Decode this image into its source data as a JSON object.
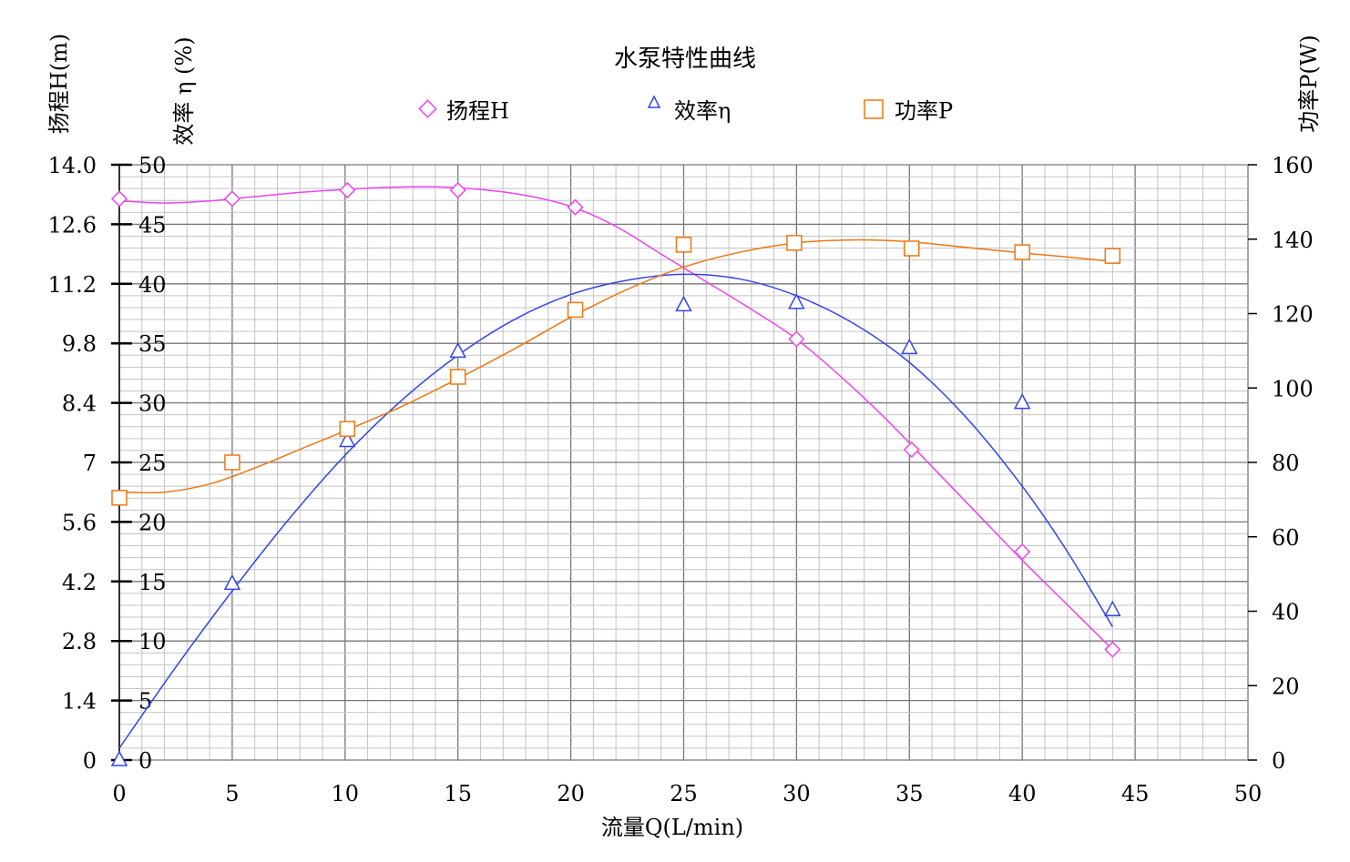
{
  "chart_data": {
    "type": "line",
    "title": "水泵特性曲线",
    "xlabel": "流量Q(L/min)",
    "ylabel_head": "扬程H(m)",
    "ylabel_eff": "效率 η (%)",
    "ylabel_power": "功率P(W)",
    "xlim": [
      0,
      50
    ],
    "ylim_head": [
      0,
      14
    ],
    "ylim_eff": [
      0,
      50
    ],
    "ylim_power": [
      0,
      160
    ],
    "x_ticks": [
      "0",
      "5",
      "10",
      "15",
      "20",
      "25",
      "30",
      "35",
      "40",
      "45",
      "50"
    ],
    "head_ticks": [
      "0",
      "1.4",
      "2.8",
      "4.2",
      "5.6",
      "7",
      "8.4",
      "9.8",
      "11.2",
      "12.6",
      "14.0"
    ],
    "eff_ticks": [
      "0",
      "5",
      "10",
      "15",
      "20",
      "25",
      "30",
      "35",
      "40",
      "45",
      "50"
    ],
    "power_ticks": [
      "0",
      "20",
      "40",
      "60",
      "80",
      "100",
      "120",
      "140",
      "160"
    ],
    "grid": true,
    "legend_position": "top-center",
    "series": [
      {
        "name": "扬程H",
        "axis": "head",
        "marker": "diamond",
        "color": "#ee44ee",
        "points": [
          [
            0,
            13.2
          ],
          [
            5,
            13.2
          ],
          [
            10.1,
            13.4
          ],
          [
            15,
            13.4
          ],
          [
            20.2,
            13.0
          ],
          [
            30,
            9.9
          ],
          [
            35.1,
            7.3
          ],
          [
            40,
            4.9
          ],
          [
            44,
            2.6
          ]
        ],
        "curve": [
          [
            0,
            13.15
          ],
          [
            2,
            13.1
          ],
          [
            4,
            13.15
          ],
          [
            6,
            13.25
          ],
          [
            8,
            13.35
          ],
          [
            10,
            13.42
          ],
          [
            12,
            13.47
          ],
          [
            14,
            13.48
          ],
          [
            16,
            13.42
          ],
          [
            18,
            13.28
          ],
          [
            20,
            13.02
          ],
          [
            22,
            12.55
          ],
          [
            24,
            11.9
          ],
          [
            26,
            11.25
          ],
          [
            28,
            10.6
          ],
          [
            30,
            9.9
          ],
          [
            32,
            9.0
          ],
          [
            34,
            8.0
          ],
          [
            36,
            6.9
          ],
          [
            38,
            5.8
          ],
          [
            40,
            4.7
          ],
          [
            42,
            3.65
          ],
          [
            44,
            2.6
          ]
        ]
      },
      {
        "name": "效率η",
        "axis": "eff",
        "marker": "triangle",
        "color": "#3344ee",
        "points": [
          [
            0,
            0
          ],
          [
            5,
            14.8
          ],
          [
            10.1,
            26.8
          ],
          [
            15,
            34.3
          ],
          [
            25,
            38.2
          ],
          [
            30,
            38.4
          ],
          [
            35,
            34.6
          ],
          [
            40,
            30.0
          ],
          [
            44,
            12.6
          ]
        ],
        "curve": [
          [
            0,
            1
          ],
          [
            2.5,
            7.8
          ],
          [
            5,
            14.2
          ],
          [
            7.5,
            20.2
          ],
          [
            10,
            25.6
          ],
          [
            12.5,
            30.2
          ],
          [
            15,
            34.0
          ],
          [
            17.5,
            37.0
          ],
          [
            20,
            39.1
          ],
          [
            22.5,
            40.3
          ],
          [
            25,
            40.8
          ],
          [
            27.5,
            40.4
          ],
          [
            30,
            39.0
          ],
          [
            32.5,
            36.7
          ],
          [
            35,
            33.4
          ],
          [
            37.5,
            28.8
          ],
          [
            40,
            23.0
          ],
          [
            42,
            17.5
          ],
          [
            44,
            11.2
          ]
        ]
      },
      {
        "name": "功率P",
        "axis": "power",
        "marker": "square",
        "color": "#ee7711",
        "points": [
          [
            0,
            70.5
          ],
          [
            5,
            80
          ],
          [
            10.1,
            89
          ],
          [
            15,
            103
          ],
          [
            20.2,
            121
          ],
          [
            25,
            138.5
          ],
          [
            29.9,
            139
          ],
          [
            35.1,
            137.5
          ],
          [
            40,
            136.5
          ],
          [
            44,
            135.5
          ]
        ],
        "curve": [
          [
            0,
            72
          ],
          [
            2,
            72
          ],
          [
            4,
            74.2
          ],
          [
            6,
            78.5
          ],
          [
            8,
            83.5
          ],
          [
            10,
            88.5
          ],
          [
            12.5,
            95
          ],
          [
            15,
            102.5
          ],
          [
            17.5,
            110.5
          ],
          [
            20,
            119
          ],
          [
            22.5,
            126.5
          ],
          [
            25,
            132.5
          ],
          [
            27.5,
            136.5
          ],
          [
            30,
            139
          ],
          [
            32.5,
            139.8
          ],
          [
            35,
            139.3
          ],
          [
            37.5,
            137.8
          ],
          [
            40,
            136.3
          ],
          [
            42,
            135.2
          ],
          [
            44,
            134
          ]
        ]
      }
    ]
  }
}
